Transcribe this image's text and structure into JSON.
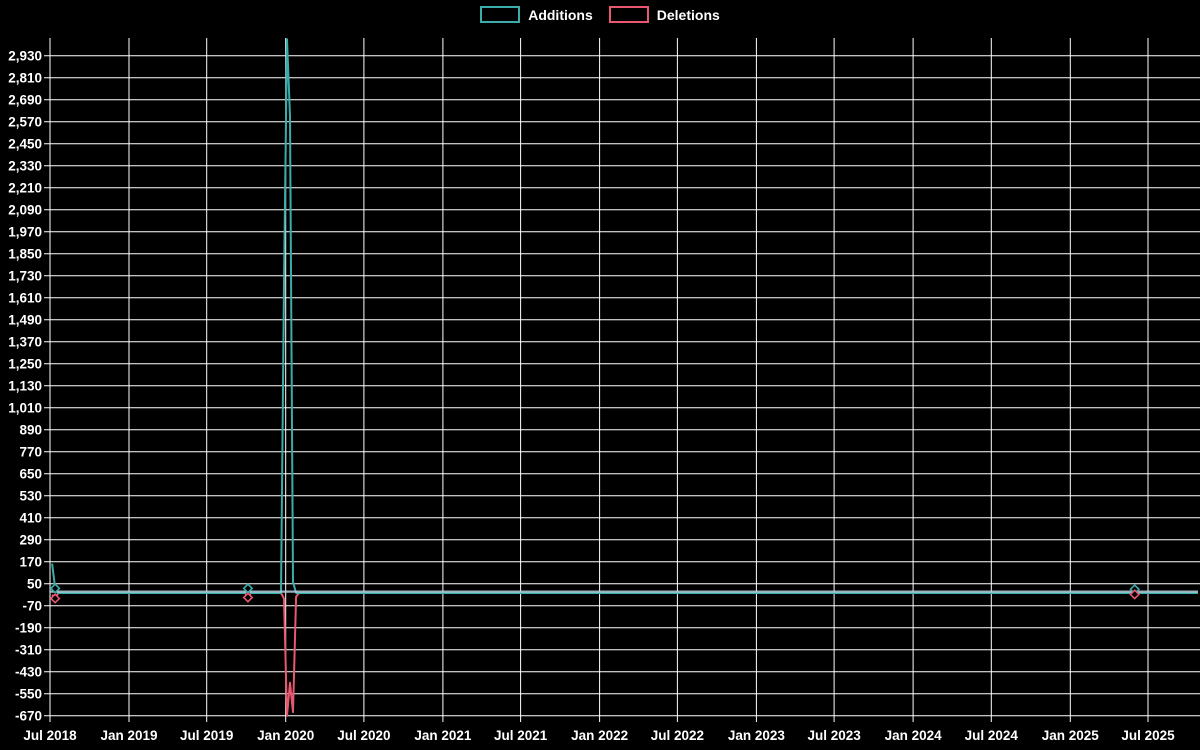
{
  "legend": {
    "items": [
      {
        "label": "Additions",
        "color": "#3bacac"
      },
      {
        "label": "Deletions",
        "color": "#e85870"
      }
    ]
  },
  "colors": {
    "background": "#000000",
    "grid": "#ffffff",
    "text": "#ffffff",
    "additions": "#3bacac",
    "deletions": "#e85870",
    "zero_baseline": "#b7d0da"
  },
  "chart_data": {
    "type": "line",
    "title": "",
    "xlabel": "",
    "ylabel": "",
    "x_range": [
      "2018-07-01",
      "2025-07-01"
    ],
    "ylim": [
      -704,
      3027
    ],
    "grid": true,
    "legend_position": "top-center",
    "note": "Additions peak around Jan 2020 extends above the visible axis (clipped at plot top)",
    "x_ticks": [
      {
        "date": "2018-07-01",
        "label": "Jul 2018"
      },
      {
        "date": "2019-01-01",
        "label": "Jan 2019"
      },
      {
        "date": "2019-07-01",
        "label": "Jul 2019"
      },
      {
        "date": "2020-01-01",
        "label": "Jan 2020"
      },
      {
        "date": "2020-07-01",
        "label": "Jul 2020"
      },
      {
        "date": "2021-01-01",
        "label": "Jan 2021"
      },
      {
        "date": "2021-07-01",
        "label": "Jul 2021"
      },
      {
        "date": "2022-01-01",
        "label": "Jan 2022"
      },
      {
        "date": "2022-07-01",
        "label": "Jul 2022"
      },
      {
        "date": "2023-01-01",
        "label": "Jan 2023"
      },
      {
        "date": "2023-07-01",
        "label": "Jul 2023"
      },
      {
        "date": "2024-01-01",
        "label": "Jan 2024"
      },
      {
        "date": "2024-07-01",
        "label": "Jul 2024"
      },
      {
        "date": "2025-01-01",
        "label": "Jan 2025"
      },
      {
        "date": "2025-07-01",
        "label": "Jul 2025"
      }
    ],
    "y_ticks": [
      {
        "value": 2930,
        "label": "2,930"
      },
      {
        "value": 2810,
        "label": "2,810"
      },
      {
        "value": 2690,
        "label": "2,690"
      },
      {
        "value": 2570,
        "label": "2,570"
      },
      {
        "value": 2450,
        "label": "2,450"
      },
      {
        "value": 2330,
        "label": "2,330"
      },
      {
        "value": 2210,
        "label": "2,210"
      },
      {
        "value": 2090,
        "label": "2,090"
      },
      {
        "value": 1970,
        "label": "1,970"
      },
      {
        "value": 1850,
        "label": "1,850"
      },
      {
        "value": 1730,
        "label": "1,730"
      },
      {
        "value": 1610,
        "label": "1,610"
      },
      {
        "value": 1490,
        "label": "1,490"
      },
      {
        "value": 1370,
        "label": "1,370"
      },
      {
        "value": 1250,
        "label": "1,250"
      },
      {
        "value": 1130,
        "label": "1,130"
      },
      {
        "value": 1010,
        "label": "1,010"
      },
      {
        "value": 890,
        "label": "890"
      },
      {
        "value": 770,
        "label": "770"
      },
      {
        "value": 650,
        "label": "650"
      },
      {
        "value": 530,
        "label": "530"
      },
      {
        "value": 410,
        "label": "410"
      },
      {
        "value": 290,
        "label": "290"
      },
      {
        "value": 170,
        "label": "170"
      },
      {
        "value": 50,
        "label": "50"
      },
      {
        "value": -70,
        "label": "-70"
      },
      {
        "value": -190,
        "label": "-190"
      },
      {
        "value": -310,
        "label": "-310"
      },
      {
        "value": -430,
        "label": "-430"
      },
      {
        "value": -550,
        "label": "-550"
      },
      {
        "value": -670,
        "label": "-670"
      }
    ],
    "series": [
      {
        "name": "Additions",
        "color": "#3bacac",
        "points": [
          [
            "2018-07-06",
            160
          ],
          [
            "2018-07-13",
            25
          ],
          [
            "2018-07-20",
            0
          ],
          [
            "2019-09-28",
            0
          ],
          [
            "2019-10-05",
            25
          ],
          [
            "2019-10-12",
            0
          ],
          [
            "2019-12-21",
            0
          ],
          [
            "2019-12-28",
            1690
          ],
          [
            "2020-01-04",
            3020
          ],
          [
            "2020-01-11",
            2600
          ],
          [
            "2020-01-18",
            60
          ],
          [
            "2020-01-25",
            0
          ],
          [
            "2025-05-24",
            0
          ],
          [
            "2025-05-31",
            20
          ],
          [
            "2025-06-07",
            0
          ],
          [
            "2025-10-25",
            0
          ]
        ]
      },
      {
        "name": "Deletions",
        "color": "#e85870",
        "points": [
          [
            "2018-07-06",
            -10
          ],
          [
            "2018-07-13",
            -30
          ],
          [
            "2018-07-20",
            0
          ],
          [
            "2019-09-28",
            0
          ],
          [
            "2019-10-05",
            -25
          ],
          [
            "2019-10-12",
            0
          ],
          [
            "2019-12-21",
            0
          ],
          [
            "2019-12-28",
            -30
          ],
          [
            "2020-01-04",
            -670
          ],
          [
            "2020-01-11",
            -490
          ],
          [
            "2020-01-18",
            -650
          ],
          [
            "2020-01-25",
            -20
          ],
          [
            "2020-02-01",
            0
          ],
          [
            "2025-05-24",
            0
          ],
          [
            "2025-05-31",
            -8
          ],
          [
            "2025-06-07",
            0
          ],
          [
            "2025-10-25",
            0
          ]
        ]
      }
    ],
    "markers": [
      {
        "series": "Additions",
        "date": "2018-07-13",
        "value": 25
      },
      {
        "series": "Deletions",
        "date": "2018-07-13",
        "value": -30
      },
      {
        "series": "Additions",
        "date": "2019-10-05",
        "value": 25
      },
      {
        "series": "Deletions",
        "date": "2019-10-05",
        "value": -25
      },
      {
        "series": "Additions",
        "date": "2025-05-31",
        "value": 20
      },
      {
        "series": "Deletions",
        "date": "2025-05-31",
        "value": -8
      }
    ]
  }
}
